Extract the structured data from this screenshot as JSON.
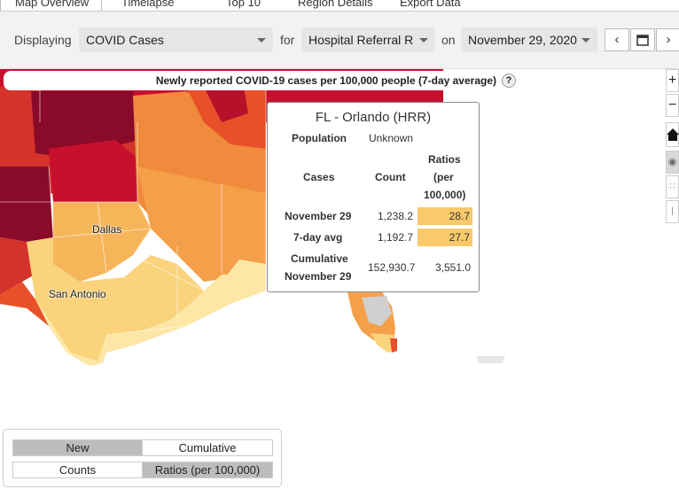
{
  "tabs": [
    "Map Overview",
    "Timelapse",
    "Top 10",
    "Region Details",
    "Export Data"
  ],
  "toolbar": {
    "displaying_label": "Displaying",
    "metric_value": "COVID Cases",
    "for_label": "for",
    "region_value": "Hospital Referral R",
    "on_label": "on",
    "date_value": "November 29, 2020"
  },
  "map": {
    "title": "Newly reported COVID-19 cases per 100,000 people (7-day average)",
    "help": "?",
    "cities": [
      "Dallas",
      "San Antonio"
    ]
  },
  "tooltip": {
    "title": "FL - Orlando (HRR)",
    "population_label": "Population",
    "population_value": "Unknown",
    "col_cases": "Cases",
    "col_count": "Count",
    "col_ratio_1": "Ratios",
    "col_ratio_2": "(per",
    "col_ratio_3": "100,000)",
    "rows": [
      {
        "label": "November 29",
        "count": "1,238.2",
        "ratio": "28.7"
      },
      {
        "label": "7-day avg",
        "count": "1,192.7",
        "ratio": "27.7"
      }
    ],
    "cumulative_label_1": "Cumulative",
    "cumulative_label_2": "November 29",
    "cumulative_count": "152,930.7",
    "cumulative_ratio": "3,551.0"
  },
  "zoom": {
    "in": "+",
    "out": "−"
  },
  "toggles": {
    "new": "New",
    "cumulative": "Cumulative",
    "counts": "Counts",
    "ratios": "Ratios (per 100,000)"
  },
  "colors": {
    "dark": "#8a0a2a",
    "red": "#c8102e",
    "orange_red": "#e8502a",
    "orange": "#f08a3c",
    "light_orange": "#f7b55a",
    "yellow": "#fad37c",
    "pale": "#fde6a6",
    "highlight": "#f9c96a"
  }
}
